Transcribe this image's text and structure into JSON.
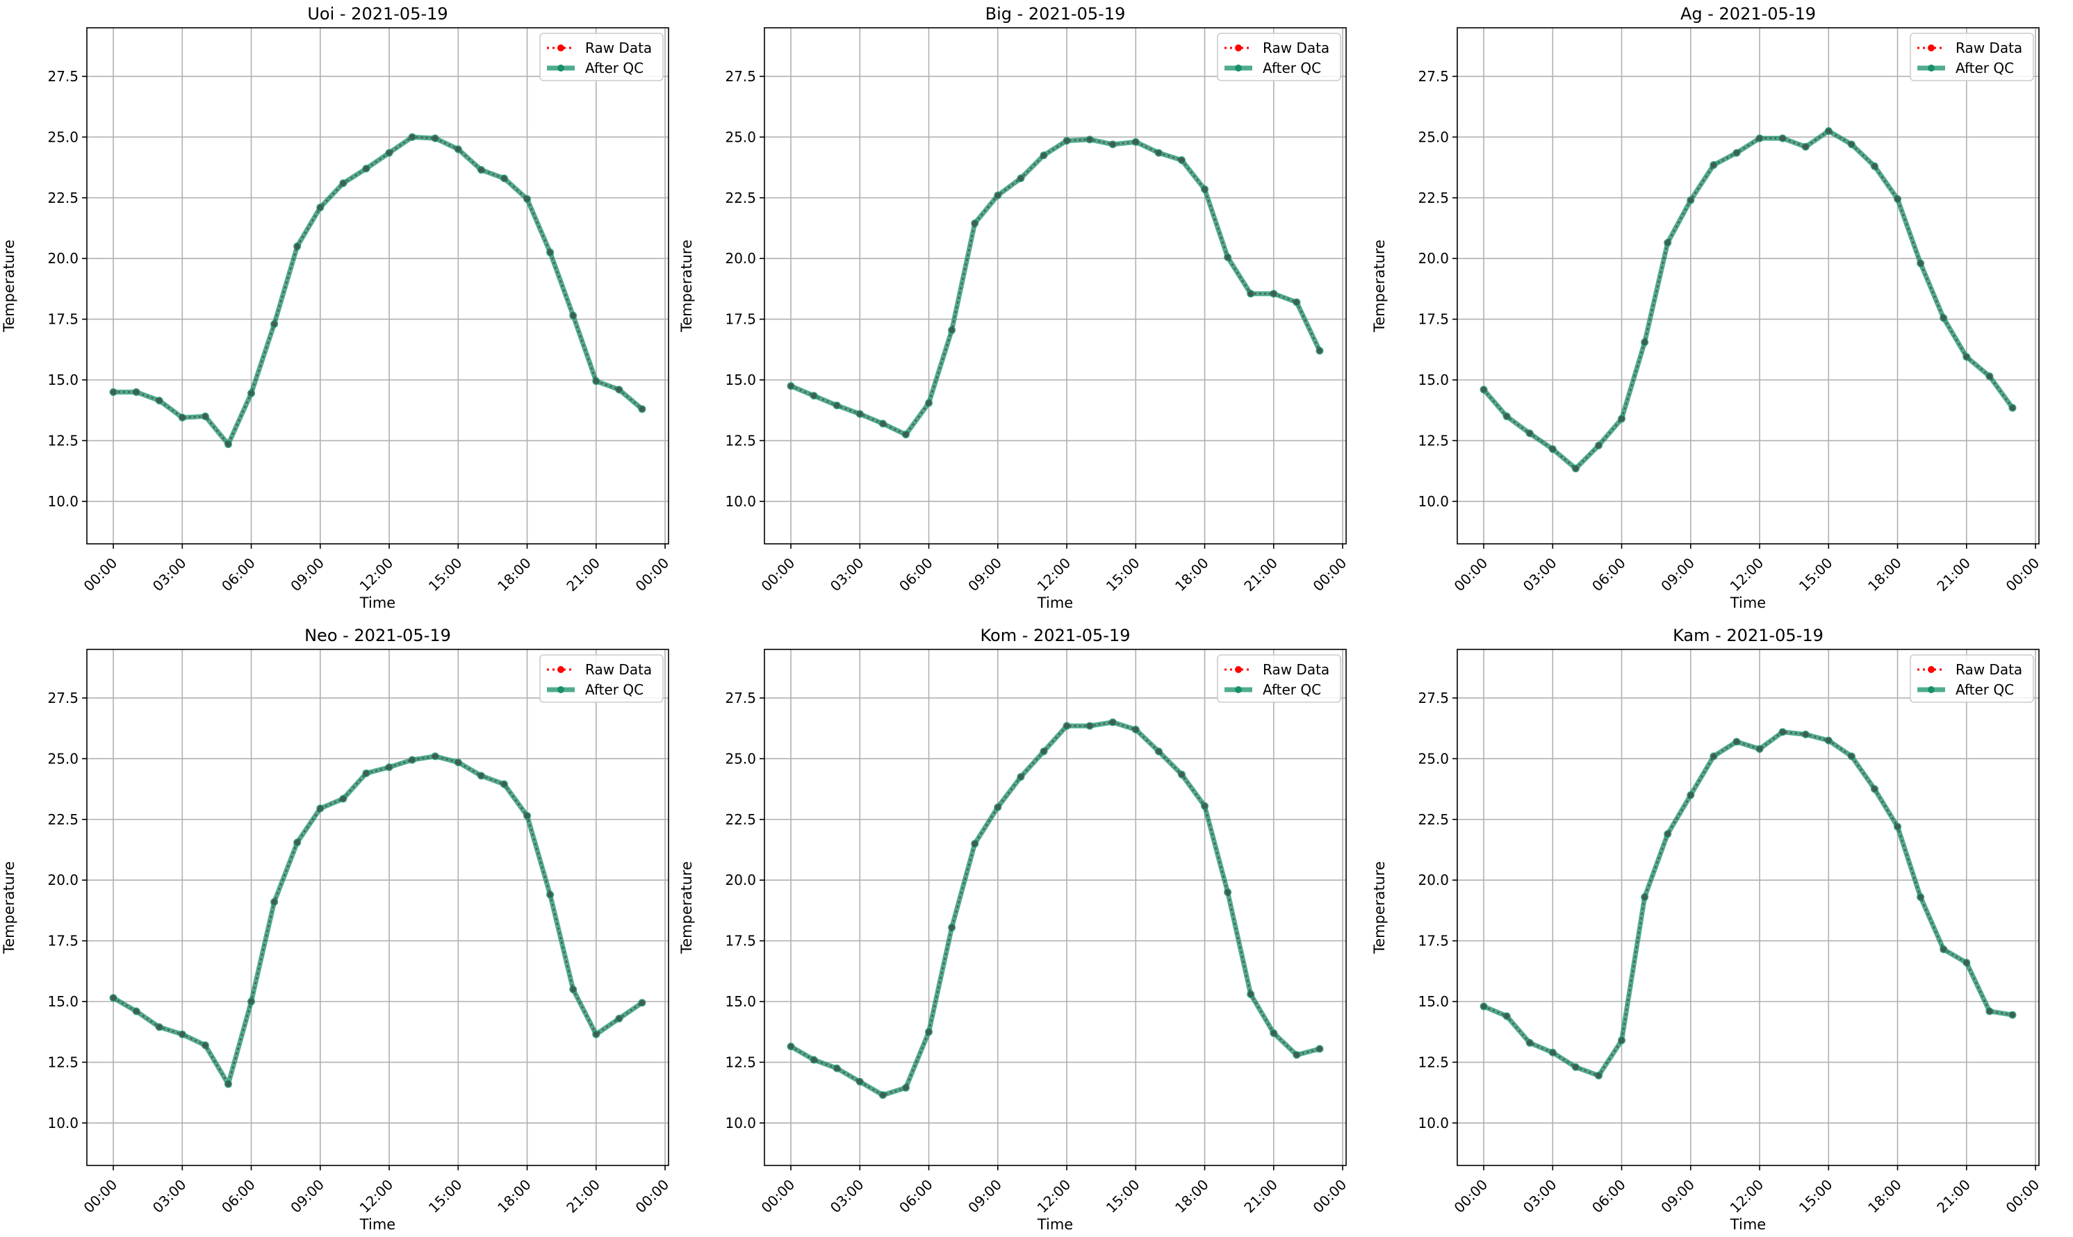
{
  "chart_data": [
    {
      "type": "line",
      "title": "Uoi - 2021-05-19",
      "xlabel": "Time",
      "ylabel": "Temperature",
      "xlim": [
        -1.15,
        24.15
      ],
      "ylim": [
        8.25,
        29.5
      ],
      "x_ticks": [
        "00:00",
        "03:00",
        "06:00",
        "09:00",
        "12:00",
        "15:00",
        "18:00",
        "21:00",
        "00:00"
      ],
      "y_ticks": [
        "10.0",
        "12.5",
        "15.0",
        "17.5",
        "20.0",
        "22.5",
        "25.0",
        "27.5"
      ],
      "grid": true,
      "legend_position": "top-right",
      "series": [
        {
          "name": "Raw Data",
          "color": "#ff0000",
          "style": "dotted",
          "x": [
            0,
            1,
            2,
            3,
            4,
            5,
            6,
            7,
            8,
            9,
            10,
            11,
            12,
            13,
            14,
            15,
            16,
            17,
            18,
            19,
            20,
            21,
            22,
            23
          ],
          "y": [
            14.5,
            14.5,
            14.15,
            13.45,
            13.5,
            12.35,
            14.45,
            17.3,
            20.5,
            22.1,
            23.1,
            23.7,
            24.35,
            25.0,
            24.95,
            24.5,
            23.65,
            23.3,
            22.45,
            20.25,
            17.65,
            14.95,
            14.6,
            13.8
          ]
        },
        {
          "name": "After QC",
          "color": "#16906a",
          "style": "solid",
          "x": [
            0,
            1,
            2,
            3,
            4,
            5,
            6,
            7,
            8,
            9,
            10,
            11,
            12,
            13,
            14,
            15,
            16,
            17,
            18,
            19,
            20,
            21,
            22,
            23
          ],
          "y": [
            14.5,
            14.5,
            14.15,
            13.45,
            13.5,
            12.35,
            14.45,
            17.3,
            20.5,
            22.1,
            23.1,
            23.7,
            24.35,
            25.0,
            24.95,
            24.5,
            23.65,
            23.3,
            22.45,
            20.25,
            17.65,
            14.95,
            14.6,
            13.8
          ]
        }
      ]
    },
    {
      "type": "line",
      "title": "Big - 2021-05-19",
      "xlabel": "Time",
      "ylabel": "Temperature",
      "xlim": [
        -1.15,
        24.15
      ],
      "ylim": [
        8.25,
        29.5
      ],
      "x_ticks": [
        "00:00",
        "03:00",
        "06:00",
        "09:00",
        "12:00",
        "15:00",
        "18:00",
        "21:00",
        "00:00"
      ],
      "y_ticks": [
        "10.0",
        "12.5",
        "15.0",
        "17.5",
        "20.0",
        "22.5",
        "25.0",
        "27.5"
      ],
      "grid": true,
      "legend_position": "top-right",
      "series": [
        {
          "name": "Raw Data",
          "color": "#ff0000",
          "style": "dotted",
          "x": [
            0,
            1,
            2,
            3,
            4,
            5,
            6,
            7,
            8,
            9,
            10,
            11,
            12,
            13,
            14,
            15,
            16,
            17,
            18,
            19,
            20,
            21,
            22,
            23
          ],
          "y": [
            14.75,
            14.35,
            13.95,
            13.6,
            13.2,
            12.75,
            14.05,
            17.05,
            21.45,
            22.6,
            23.3,
            24.25,
            24.85,
            24.9,
            24.7,
            24.8,
            24.35,
            24.05,
            22.85,
            20.05,
            18.55,
            18.55,
            18.2,
            16.2
          ]
        },
        {
          "name": "After QC",
          "color": "#16906a",
          "style": "solid",
          "x": [
            0,
            1,
            2,
            3,
            4,
            5,
            6,
            7,
            8,
            9,
            10,
            11,
            12,
            13,
            14,
            15,
            16,
            17,
            18,
            19,
            20,
            21,
            22,
            23
          ],
          "y": [
            14.75,
            14.35,
            13.95,
            13.6,
            13.2,
            12.75,
            14.05,
            17.05,
            21.45,
            22.6,
            23.3,
            24.25,
            24.85,
            24.9,
            24.7,
            24.8,
            24.35,
            24.05,
            22.85,
            20.05,
            18.55,
            18.55,
            18.2,
            16.2
          ]
        }
      ]
    },
    {
      "type": "line",
      "title": "Ag - 2021-05-19",
      "xlabel": "Time",
      "ylabel": "Temperature",
      "xlim": [
        -1.15,
        24.15
      ],
      "ylim": [
        8.25,
        29.5
      ],
      "x_ticks": [
        "00:00",
        "03:00",
        "06:00",
        "09:00",
        "12:00",
        "15:00",
        "18:00",
        "21:00",
        "00:00"
      ],
      "y_ticks": [
        "10.0",
        "12.5",
        "15.0",
        "17.5",
        "20.0",
        "22.5",
        "25.0",
        "27.5"
      ],
      "grid": true,
      "legend_position": "top-right",
      "series": [
        {
          "name": "Raw Data",
          "color": "#ff0000",
          "style": "dotted",
          "x": [
            0,
            1,
            2,
            3,
            4,
            5,
            6,
            7,
            8,
            9,
            10,
            11,
            12,
            13,
            14,
            15,
            16,
            17,
            18,
            19,
            20,
            21,
            22,
            23
          ],
          "y": [
            14.6,
            13.5,
            12.8,
            12.15,
            11.35,
            12.3,
            13.4,
            16.55,
            20.65,
            22.4,
            23.85,
            24.35,
            24.95,
            24.95,
            24.6,
            25.25,
            24.7,
            23.8,
            22.45,
            19.8,
            17.55,
            15.95,
            15.15,
            13.85
          ]
        },
        {
          "name": "After QC",
          "color": "#16906a",
          "style": "solid",
          "x": [
            0,
            1,
            2,
            3,
            4,
            5,
            6,
            7,
            8,
            9,
            10,
            11,
            12,
            13,
            14,
            15,
            16,
            17,
            18,
            19,
            20,
            21,
            22,
            23
          ],
          "y": [
            14.6,
            13.5,
            12.8,
            12.15,
            11.35,
            12.3,
            13.4,
            16.55,
            20.65,
            22.4,
            23.85,
            24.35,
            24.95,
            24.95,
            24.6,
            25.25,
            24.7,
            23.8,
            22.45,
            19.8,
            17.55,
            15.95,
            15.15,
            13.85
          ]
        }
      ]
    },
    {
      "type": "line",
      "title": "Neo - 2021-05-19",
      "xlabel": "Time",
      "ylabel": "Temperature",
      "xlim": [
        -1.15,
        24.15
      ],
      "ylim": [
        8.25,
        29.5
      ],
      "x_ticks": [
        "00:00",
        "03:00",
        "06:00",
        "09:00",
        "12:00",
        "15:00",
        "18:00",
        "21:00",
        "00:00"
      ],
      "y_ticks": [
        "10.0",
        "12.5",
        "15.0",
        "17.5",
        "20.0",
        "22.5",
        "25.0",
        "27.5"
      ],
      "grid": true,
      "legend_position": "top-right",
      "series": [
        {
          "name": "Raw Data",
          "color": "#ff0000",
          "style": "dotted",
          "x": [
            0,
            1,
            2,
            3,
            4,
            5,
            6,
            7,
            8,
            9,
            10,
            11,
            12,
            13,
            14,
            15,
            16,
            17,
            18,
            19,
            20,
            21,
            22,
            23
          ],
          "y": [
            15.15,
            14.6,
            13.95,
            13.65,
            13.2,
            11.6,
            15.0,
            19.1,
            21.55,
            22.95,
            23.35,
            24.4,
            24.65,
            24.95,
            25.1,
            24.85,
            24.3,
            23.95,
            22.65,
            19.4,
            15.5,
            13.65,
            14.3,
            14.95
          ]
        },
        {
          "name": "After QC",
          "color": "#16906a",
          "style": "solid",
          "x": [
            0,
            1,
            2,
            3,
            4,
            5,
            6,
            7,
            8,
            9,
            10,
            11,
            12,
            13,
            14,
            15,
            16,
            17,
            18,
            19,
            20,
            21,
            22,
            23
          ],
          "y": [
            15.15,
            14.6,
            13.95,
            13.65,
            13.2,
            11.6,
            15.0,
            19.1,
            21.55,
            22.95,
            23.35,
            24.4,
            24.65,
            24.95,
            25.1,
            24.85,
            24.3,
            23.95,
            22.65,
            19.4,
            15.5,
            13.65,
            14.3,
            14.95
          ]
        }
      ]
    },
    {
      "type": "line",
      "title": "Kom - 2021-05-19",
      "xlabel": "Time",
      "ylabel": "Temperature",
      "xlim": [
        -1.15,
        24.15
      ],
      "ylim": [
        8.25,
        29.5
      ],
      "x_ticks": [
        "00:00",
        "03:00",
        "06:00",
        "09:00",
        "12:00",
        "15:00",
        "18:00",
        "21:00",
        "00:00"
      ],
      "y_ticks": [
        "10.0",
        "12.5",
        "15.0",
        "17.5",
        "20.0",
        "22.5",
        "25.0",
        "27.5"
      ],
      "grid": true,
      "legend_position": "top-right",
      "series": [
        {
          "name": "Raw Data",
          "color": "#ff0000",
          "style": "dotted",
          "x": [
            0,
            1,
            2,
            3,
            4,
            5,
            6,
            7,
            8,
            9,
            10,
            11,
            12,
            13,
            14,
            15,
            16,
            17,
            18,
            19,
            20,
            21,
            22,
            23
          ],
          "y": [
            13.15,
            12.6,
            12.25,
            11.7,
            11.15,
            11.45,
            13.75,
            18.05,
            21.5,
            23.0,
            24.25,
            25.3,
            26.35,
            26.35,
            26.5,
            26.2,
            25.3,
            24.35,
            23.05,
            19.5,
            15.3,
            13.7,
            12.8,
            13.05
          ]
        },
        {
          "name": "After QC",
          "color": "#16906a",
          "style": "solid",
          "x": [
            0,
            1,
            2,
            3,
            4,
            5,
            6,
            7,
            8,
            9,
            10,
            11,
            12,
            13,
            14,
            15,
            16,
            17,
            18,
            19,
            20,
            21,
            22,
            23
          ],
          "y": [
            13.15,
            12.6,
            12.25,
            11.7,
            11.15,
            11.45,
            13.75,
            18.05,
            21.5,
            23.0,
            24.25,
            25.3,
            26.35,
            26.35,
            26.5,
            26.2,
            25.3,
            24.35,
            23.05,
            19.5,
            15.3,
            13.7,
            12.8,
            13.05
          ]
        }
      ]
    },
    {
      "type": "line",
      "title": "Kam - 2021-05-19",
      "xlabel": "Time",
      "ylabel": "Temperature",
      "xlim": [
        -1.15,
        24.15
      ],
      "ylim": [
        8.25,
        29.5
      ],
      "x_ticks": [
        "00:00",
        "03:00",
        "06:00",
        "09:00",
        "12:00",
        "15:00",
        "18:00",
        "21:00",
        "00:00"
      ],
      "y_ticks": [
        "10.0",
        "12.5",
        "15.0",
        "17.5",
        "20.0",
        "22.5",
        "25.0",
        "27.5"
      ],
      "grid": true,
      "legend_position": "top-right",
      "series": [
        {
          "name": "Raw Data",
          "color": "#ff0000",
          "style": "dotted",
          "x": [
            0,
            1,
            2,
            3,
            4,
            5,
            6,
            7,
            8,
            9,
            10,
            11,
            12,
            13,
            14,
            15,
            16,
            17,
            18,
            19,
            20,
            21,
            22,
            23
          ],
          "y": [
            14.8,
            14.4,
            13.3,
            12.9,
            12.3,
            11.95,
            13.4,
            19.3,
            21.9,
            23.5,
            25.1,
            25.7,
            25.4,
            26.1,
            26.0,
            25.75,
            25.1,
            23.75,
            22.2,
            19.3,
            17.15,
            16.6,
            14.6,
            14.45
          ]
        },
        {
          "name": "After QC",
          "color": "#16906a",
          "style": "solid",
          "x": [
            0,
            1,
            2,
            3,
            4,
            5,
            6,
            7,
            8,
            9,
            10,
            11,
            12,
            13,
            14,
            15,
            16,
            17,
            18,
            19,
            20,
            21,
            22,
            23
          ],
          "y": [
            14.8,
            14.4,
            13.3,
            12.9,
            12.3,
            11.95,
            13.4,
            19.3,
            21.9,
            23.5,
            25.1,
            25.7,
            25.4,
            26.1,
            26.0,
            25.75,
            25.1,
            23.75,
            22.2,
            19.3,
            17.15,
            16.6,
            14.6,
            14.45
          ]
        }
      ]
    }
  ]
}
